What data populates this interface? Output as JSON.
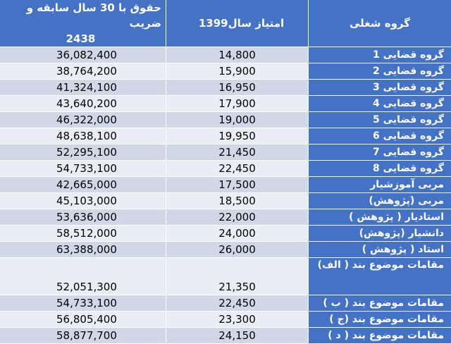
{
  "table": {
    "headers": {
      "salary_line1": "حقوق با 30 سال سابقه و ضریب",
      "salary_line2": "2438",
      "points": "امتیاز سال1399",
      "group": "گروه شغلی"
    },
    "rows": [
      {
        "group": "گروه قضایی 1",
        "points": "14,800",
        "salary": "36,082,400"
      },
      {
        "group": "گروه قضایی 2",
        "points": "15,900",
        "salary": "38,764,200"
      },
      {
        "group": "گروه قضایی 3",
        "points": "16,950",
        "salary": "41,324,100"
      },
      {
        "group": "گروه قضایی 4",
        "points": "17,900",
        "salary": "43,640,200"
      },
      {
        "group": "گروه قضایی 5",
        "points": "19,000",
        "salary": "46,322,000"
      },
      {
        "group": "گروه قضایی 6",
        "points": "19,950",
        "salary": "48,638,100"
      },
      {
        "group": "گروه قضایی 7",
        "points": "21,450",
        "salary": "52,295,100"
      },
      {
        "group": "گروه قضایی 8",
        "points": "22,450",
        "salary": "54,733,100"
      },
      {
        "group": "مربی آموزشیار",
        "points": "17,500",
        "salary": "42,665,000"
      },
      {
        "group": "مربی (پژوهش)",
        "points": "18,500",
        "salary": "45,103,000"
      },
      {
        "group": "استادیار ( پژوهش )",
        "points": "22,000",
        "salary": "53,636,000"
      },
      {
        "group": "دانشیار (پژوهش)",
        "points": "24,000",
        "salary": "58,512,000"
      },
      {
        "group": "استاد ( پژوهش )",
        "points": "26,000",
        "salary": "63,388,000"
      },
      {
        "group": "مقامات موضوع بند ( الف)",
        "points": "21,350",
        "salary": "52,051,300"
      },
      {
        "group": "مقامات موضوع بند ( ب )",
        "points": "22,450",
        "salary": "54,733,100"
      },
      {
        "group": "مقامات موضوع بند (ج )",
        "points": "23,300",
        "salary": "56,805,400"
      },
      {
        "group": "مقامات موضوع بند ( د )",
        "points": "24,150",
        "salary": "58,877,700"
      }
    ]
  }
}
